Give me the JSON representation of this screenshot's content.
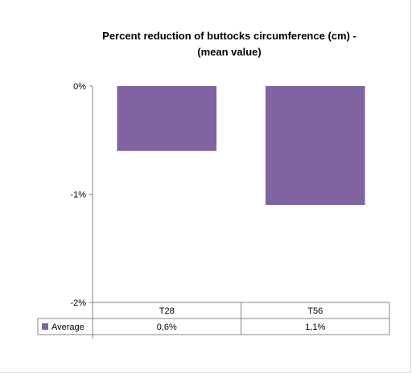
{
  "chart_data": {
    "type": "bar",
    "title_lines": [
      "Percent reduction of buttocks circumference (cm) -",
      "(mean value)"
    ],
    "categories": [
      "T28",
      "T56"
    ],
    "series": [
      {
        "name": "Average",
        "values": [
          -0.6,
          -1.1
        ],
        "labels": [
          "0,6%",
          "1,1%"
        ],
        "color": "#8064a2"
      }
    ],
    "y_tick_labels": [
      "0%",
      "-1%",
      "-2%"
    ],
    "y_ticks": [
      0,
      -1,
      -2
    ],
    "ylim": [
      -2,
      0
    ],
    "grid": false,
    "legend": "data-table-left"
  }
}
